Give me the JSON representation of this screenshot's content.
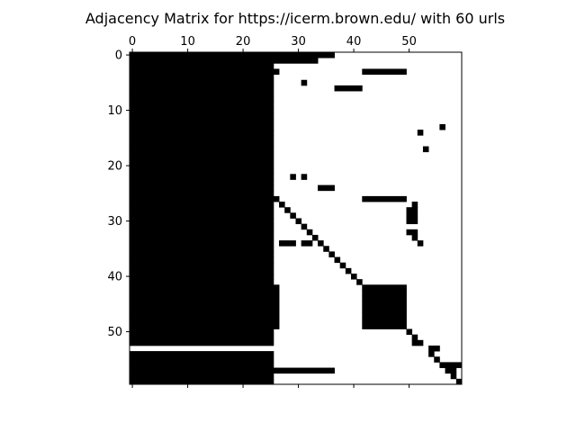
{
  "chart_data": {
    "type": "heatmap",
    "title": "Adjacency Matrix for https://icerm.brown.edu/ with 60 urls",
    "n": 60,
    "x_ticks": [
      0,
      10,
      20,
      30,
      40,
      50
    ],
    "y_ticks": [
      0,
      10,
      20,
      30,
      40,
      50
    ],
    "x_axis_position": "top",
    "colormap": {
      "nonzero": "#000000",
      "zero": "#ffffff"
    },
    "grid": false,
    "filled_cells": [
      [
        0,
        0,
        25
      ],
      [
        0,
        26,
        33
      ],
      [
        0,
        34,
        36
      ],
      [
        1,
        0,
        33
      ],
      [
        2,
        0,
        25
      ],
      [
        3,
        0,
        25
      ],
      [
        3,
        26,
        26
      ],
      [
        3,
        42,
        49
      ],
      [
        4,
        0,
        25
      ],
      [
        5,
        0,
        25
      ],
      [
        5,
        31,
        31
      ],
      [
        6,
        0,
        25
      ],
      [
        6,
        37,
        41
      ],
      [
        7,
        0,
        25
      ],
      [
        8,
        0,
        25
      ],
      [
        9,
        0,
        25
      ],
      [
        10,
        0,
        25
      ],
      [
        11,
        0,
        25
      ],
      [
        12,
        0,
        25
      ],
      [
        13,
        0,
        25
      ],
      [
        13,
        56,
        56
      ],
      [
        14,
        0,
        25
      ],
      [
        14,
        52,
        52
      ],
      [
        15,
        0,
        25
      ],
      [
        16,
        0,
        25
      ],
      [
        17,
        0,
        25
      ],
      [
        17,
        53,
        53
      ],
      [
        18,
        0,
        25
      ],
      [
        19,
        0,
        25
      ],
      [
        20,
        0,
        25
      ],
      [
        21,
        0,
        25
      ],
      [
        22,
        0,
        25
      ],
      [
        22,
        29,
        29
      ],
      [
        22,
        31,
        31
      ],
      [
        23,
        0,
        25
      ],
      [
        24,
        0,
        25
      ],
      [
        24,
        34,
        36
      ],
      [
        25,
        0,
        25
      ],
      [
        26,
        0,
        26
      ],
      [
        26,
        42,
        49
      ],
      [
        27,
        0,
        25
      ],
      [
        27,
        27,
        27
      ],
      [
        27,
        51,
        51
      ],
      [
        28,
        0,
        25
      ],
      [
        28,
        28,
        28
      ],
      [
        28,
        50,
        51
      ],
      [
        29,
        0,
        25
      ],
      [
        29,
        29,
        29
      ],
      [
        29,
        50,
        51
      ],
      [
        30,
        0,
        25
      ],
      [
        30,
        30,
        30
      ],
      [
        30,
        50,
        51
      ],
      [
        31,
        0,
        25
      ],
      [
        31,
        31,
        31
      ],
      [
        32,
        0,
        25
      ],
      [
        32,
        32,
        32
      ],
      [
        32,
        50,
        51
      ],
      [
        33,
        0,
        25
      ],
      [
        33,
        33,
        33
      ],
      [
        33,
        51,
        51
      ],
      [
        34,
        0,
        25
      ],
      [
        34,
        27,
        29
      ],
      [
        34,
        31,
        32
      ],
      [
        34,
        34,
        34
      ],
      [
        34,
        52,
        52
      ],
      [
        35,
        0,
        25
      ],
      [
        35,
        35,
        35
      ],
      [
        36,
        0,
        25
      ],
      [
        36,
        36,
        36
      ],
      [
        37,
        0,
        25
      ],
      [
        37,
        37,
        37
      ],
      [
        38,
        0,
        25
      ],
      [
        38,
        38,
        38
      ],
      [
        39,
        0,
        25
      ],
      [
        39,
        39,
        39
      ],
      [
        40,
        0,
        25
      ],
      [
        40,
        40,
        40
      ],
      [
        41,
        0,
        25
      ],
      [
        41,
        41,
        41
      ],
      [
        42,
        0,
        26
      ],
      [
        42,
        42,
        49
      ],
      [
        43,
        0,
        26
      ],
      [
        43,
        42,
        49
      ],
      [
        44,
        0,
        26
      ],
      [
        44,
        42,
        49
      ],
      [
        45,
        0,
        26
      ],
      [
        45,
        42,
        49
      ],
      [
        46,
        0,
        26
      ],
      [
        46,
        42,
        49
      ],
      [
        47,
        0,
        26
      ],
      [
        47,
        42,
        49
      ],
      [
        48,
        0,
        26
      ],
      [
        48,
        42,
        49
      ],
      [
        49,
        0,
        26
      ],
      [
        49,
        42,
        49
      ],
      [
        50,
        0,
        25
      ],
      [
        50,
        50,
        50
      ],
      [
        51,
        0,
        25
      ],
      [
        51,
        51,
        51
      ],
      [
        52,
        0,
        25
      ],
      [
        52,
        51,
        52
      ],
      [
        53,
        54,
        55
      ],
      [
        54,
        0,
        25
      ],
      [
        54,
        54,
        54
      ],
      [
        55,
        0,
        25
      ],
      [
        55,
        55,
        55
      ],
      [
        56,
        0,
        25
      ],
      [
        56,
        56,
        59
      ],
      [
        57,
        0,
        36
      ],
      [
        57,
        57,
        58
      ],
      [
        58,
        0,
        25
      ],
      [
        58,
        58,
        58
      ],
      [
        59,
        0,
        25
      ],
      [
        59,
        59,
        59
      ]
    ]
  }
}
